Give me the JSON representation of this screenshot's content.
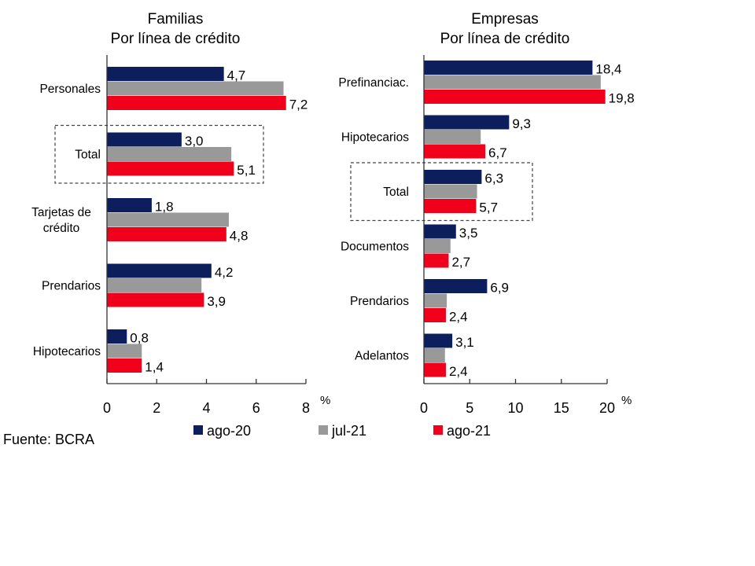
{
  "source": "Fuente: BCRA",
  "chart_data": [
    {
      "type": "bar",
      "orientation": "horizontal",
      "title": "Familias",
      "subtitle": "Por línea de crédito",
      "categories": [
        "Personales",
        "Total",
        "Tarjetas de crédito",
        "Prendarios",
        "Hipotecarios"
      ],
      "category_lines": [
        [
          "Personales"
        ],
        [
          "Total"
        ],
        [
          "Tarjetas de",
          "crédito"
        ],
        [
          "Prendarios"
        ],
        [
          "Hipotecarios"
        ]
      ],
      "highlight_category": "Total",
      "series": [
        {
          "name": "ago-20",
          "values": [
            4.7,
            3.0,
            1.8,
            4.2,
            0.8
          ],
          "labels": [
            "4,7",
            "3,0",
            "1,8",
            "4,2",
            "0,8"
          ]
        },
        {
          "name": "jul-21",
          "values": [
            7.1,
            5.0,
            4.9,
            3.8,
            1.4
          ],
          "labels": [
            null,
            null,
            null,
            null,
            null
          ]
        },
        {
          "name": "ago-21",
          "values": [
            7.2,
            5.1,
            4.8,
            3.9,
            1.4
          ],
          "labels": [
            "7,2",
            "5,1",
            "4,8",
            "3,9",
            "1,4"
          ]
        }
      ],
      "xlim": [
        0,
        8
      ],
      "xticks": [
        "0",
        "2",
        "4",
        "6",
        "8"
      ],
      "xlabel": "%",
      "grid": false
    },
    {
      "type": "bar",
      "orientation": "horizontal",
      "title": "Empresas",
      "subtitle": "Por línea de crédito",
      "categories": [
        "Prefinanciac.",
        "Hipotecarios",
        "Total",
        "Documentos",
        "Prendarios",
        "Adelantos"
      ],
      "category_lines": [
        [
          "Prefinanciac."
        ],
        [
          "Hipotecarios"
        ],
        [
          "Total"
        ],
        [
          "Documentos"
        ],
        [
          "Prendarios"
        ],
        [
          "Adelantos"
        ]
      ],
      "highlight_category": "Total",
      "series": [
        {
          "name": "ago-20",
          "values": [
            18.4,
            9.3,
            6.3,
            3.5,
            6.9,
            3.1
          ],
          "labels": [
            "18,4",
            "9,3",
            "6,3",
            "3,5",
            "6,9",
            "3,1"
          ]
        },
        {
          "name": "jul-21",
          "values": [
            19.3,
            6.2,
            5.8,
            2.9,
            2.5,
            2.3
          ],
          "labels": [
            null,
            null,
            null,
            null,
            null,
            null
          ]
        },
        {
          "name": "ago-21",
          "values": [
            19.8,
            6.7,
            5.7,
            2.7,
            2.4,
            2.4
          ],
          "labels": [
            "19,8",
            "6,7",
            "5,7",
            "2,7",
            "2,4",
            "2,4"
          ]
        }
      ],
      "xlim": [
        0,
        20
      ],
      "xticks": [
        "0",
        "5",
        "10",
        "15",
        "20"
      ],
      "xlabel": "%",
      "grid": false
    }
  ],
  "legend": {
    "placement": "bottom",
    "items": [
      {
        "name": "ago-20",
        "color": "#0c1f5c"
      },
      {
        "name": "jul-21",
        "color": "#999999"
      },
      {
        "name": "ago-21",
        "color": "#f0001a"
      }
    ]
  },
  "colors": {
    "ago-20": "#0c1f5c",
    "jul-21": "#999999",
    "ago-21": "#f0001a"
  }
}
